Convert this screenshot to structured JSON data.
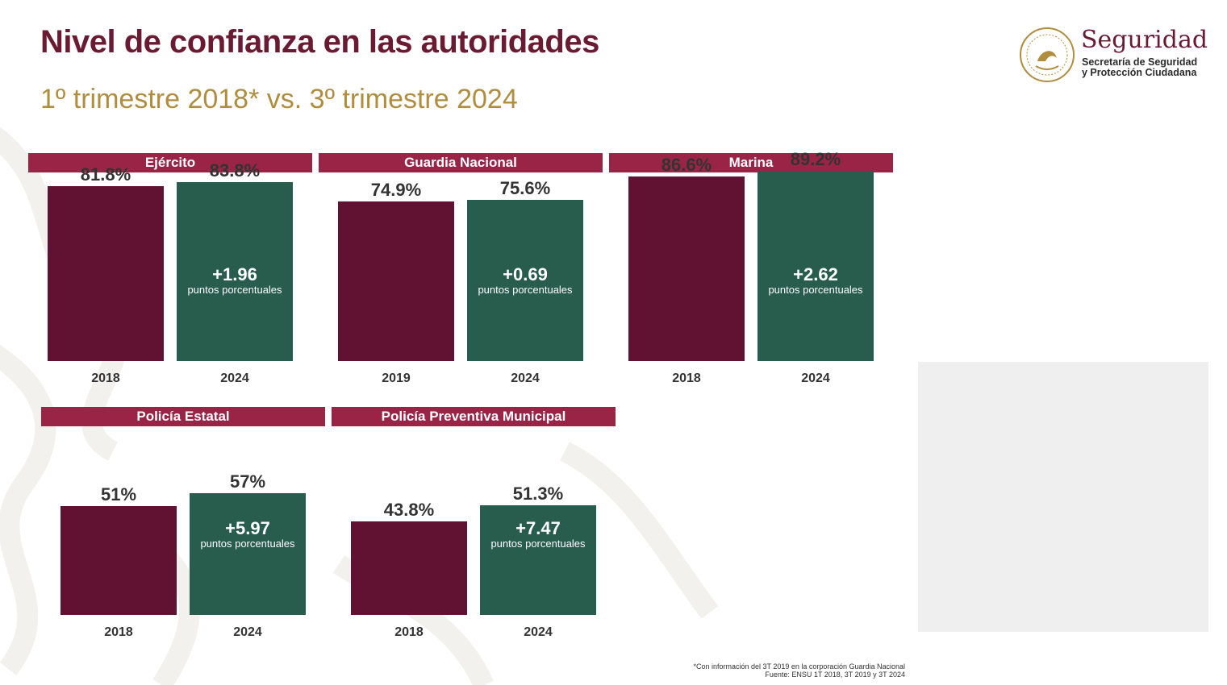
{
  "header": {
    "title": "Nivel de confianza en las autoridades",
    "subtitle": "1º trimestre 2018* vs. 3º trimestre 2024"
  },
  "logo": {
    "brand": "Seguridad",
    "line1": "Secretaría de Seguridad",
    "line2": "y Protección Ciudadana"
  },
  "colors": {
    "header_band": "#9a2446",
    "bar_earlier": "#611232",
    "bar_2024": "#285c4d",
    "title": "#6a1b33",
    "subtitle": "#b08d3e"
  },
  "chart_data": [
    {
      "type": "bar",
      "title": "Ejército",
      "categories": [
        "2018",
        "2024"
      ],
      "values": [
        81.8,
        83.8
      ],
      "labels": [
        "81.8%",
        "83.8%"
      ],
      "delta": "+1.96",
      "delta_unit": "puntos porcentuales"
    },
    {
      "type": "bar",
      "title": "Guardia Nacional",
      "categories": [
        "2019",
        "2024"
      ],
      "values": [
        74.9,
        75.6
      ],
      "labels": [
        "74.9%",
        "75.6%"
      ],
      "delta": "+0.69",
      "delta_unit": "puntos porcentuales"
    },
    {
      "type": "bar",
      "title": "Marina",
      "categories": [
        "2018",
        "2024"
      ],
      "values": [
        86.6,
        89.2
      ],
      "labels": [
        "86.6%",
        "89.2%"
      ],
      "delta": "+2.62",
      "delta_unit": "puntos porcentuales"
    },
    {
      "type": "bar",
      "title": "Policía Estatal",
      "categories": [
        "2018",
        "2024"
      ],
      "values": [
        51,
        57
      ],
      "labels": [
        "51%",
        "57%"
      ],
      "delta": "+5.97",
      "delta_unit": "puntos porcentuales"
    },
    {
      "type": "bar",
      "title": "Policía Preventiva Municipal",
      "categories": [
        "2018",
        "2024"
      ],
      "values": [
        43.8,
        51.3
      ],
      "labels": [
        "43.8%",
        "51.3%"
      ],
      "delta": "+7.47",
      "delta_unit": "puntos porcentuales"
    }
  ],
  "footnotes": {
    "note": "*Con información del 3T 2019 en la corporación Guardia Nacional",
    "source": "Fuente: ENSU 1T 2018, 3T 2019 y 3T 2024"
  }
}
